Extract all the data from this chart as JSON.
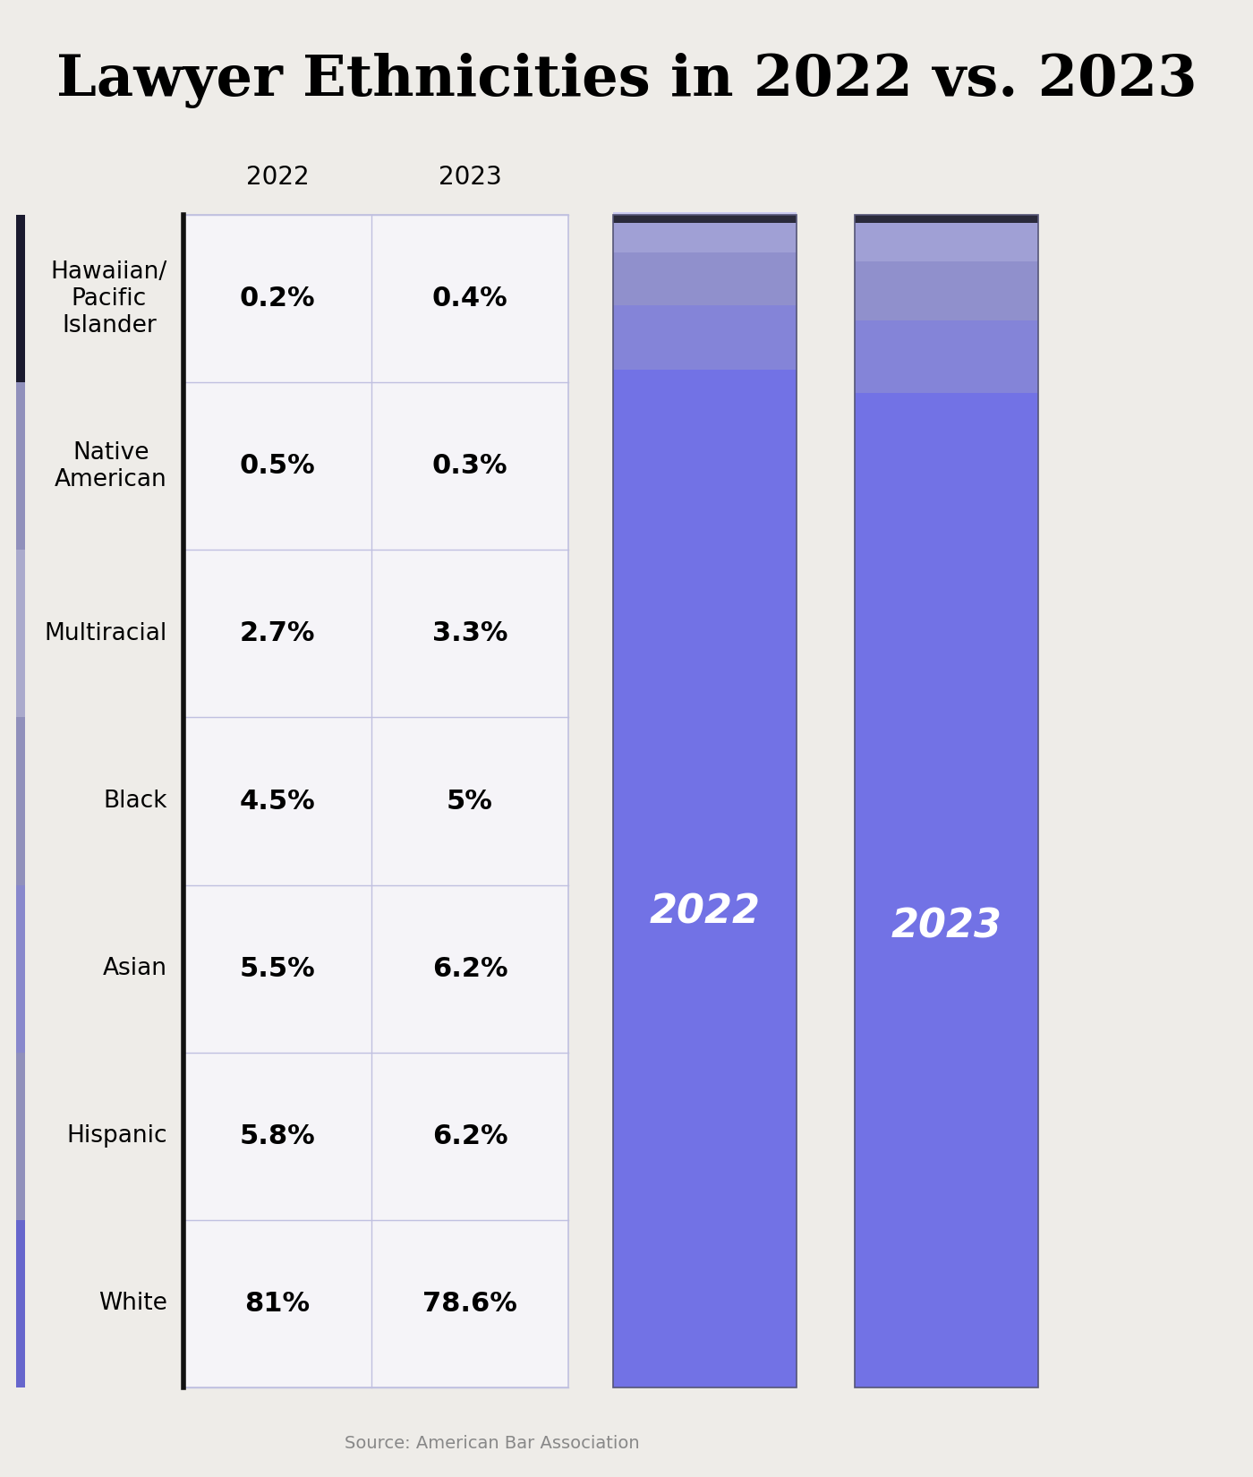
{
  "title": "Lawyer Ethnicities in 2022 vs. 2023",
  "source": "Source: American Bar Association",
  "background_color": "#eeece8",
  "categories": [
    "Hawaiian/\nPacific\nIslander",
    "Native\nAmerican",
    "Multiracial",
    "Black",
    "Asian",
    "Hispanic",
    "White"
  ],
  "values_2022": [
    0.2,
    0.5,
    2.7,
    4.5,
    5.5,
    5.8,
    81.0
  ],
  "values_2023": [
    0.4,
    0.3,
    3.3,
    5.0,
    6.2,
    6.2,
    78.6
  ],
  "labels_2022": [
    "0.2%",
    "0.5%",
    "2.7%",
    "4.5%",
    "5.5%",
    "5.8%",
    "81%"
  ],
  "labels_2023": [
    "0.4%",
    "0.3%",
    "3.3%",
    "5%",
    "6.2%",
    "6.2%",
    "78.6%"
  ],
  "table_bg": "#f5f4f8",
  "table_border": "#c0c0e0",
  "year_label_color": "#ffffff",
  "title_fontsize": 46,
  "year_header_fontsize": 20,
  "cell_fontsize": 22,
  "category_fontsize": 19,
  "bar_year_fontsize": 32,
  "source_fontsize": 14,
  "stack_colors_bottom_to_top": [
    "#7070e8",
    "#7070e8",
    "#8888dd",
    "#9999cc",
    "#aaaadd",
    "#bbbbee",
    "#ccccf5"
  ],
  "dark_top_color": "#2a2a3a",
  "strip_colors_top_to_bottom": [
    "#1a1a2e",
    "#9090bb",
    "#aaaacc",
    "#9090bb",
    "#8888cc",
    "#9090bb",
    "#6666cc"
  ]
}
